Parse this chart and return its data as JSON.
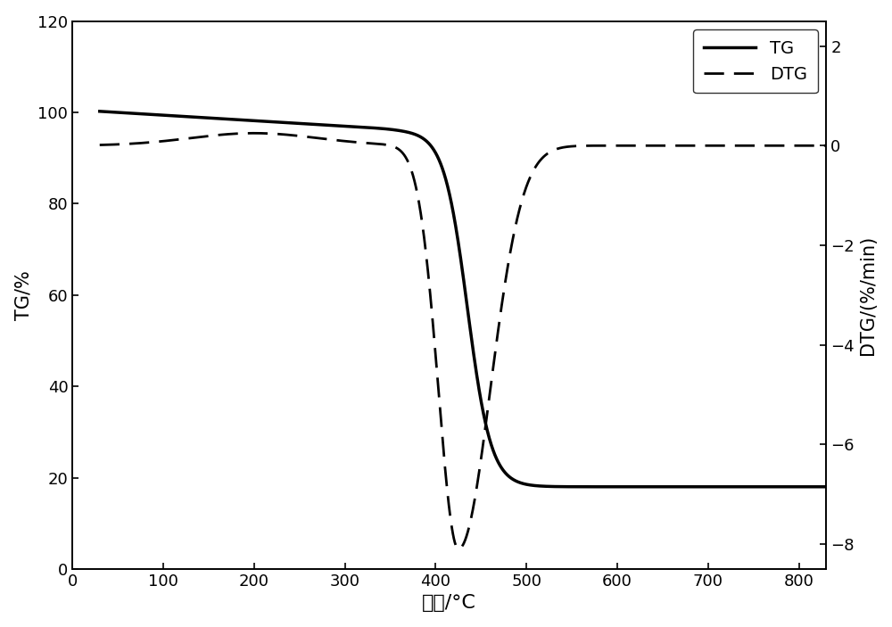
{
  "x_min": 30,
  "x_max": 830,
  "tg_ylim": [
    0,
    120
  ],
  "dtg_ylim": [
    -8.5,
    2.5
  ],
  "tg_yticks": [
    0,
    20,
    40,
    60,
    80,
    100,
    120
  ],
  "dtg_yticks": [
    -8,
    -6,
    -4,
    -2,
    0,
    2
  ],
  "xticks": [
    0,
    100,
    200,
    300,
    400,
    500,
    600,
    700,
    800
  ],
  "xlabel": "温度/°C",
  "ylabel_left": "TG/%",
  "ylabel_right": "DTG/(%/min)",
  "legend_tg": "TG",
  "legend_dtg": "DTG",
  "line_color": "black",
  "linewidth_tg": 2.5,
  "linewidth_dtg": 2.0,
  "figsize": [
    10.0,
    7.03
  ],
  "dpi": 100
}
